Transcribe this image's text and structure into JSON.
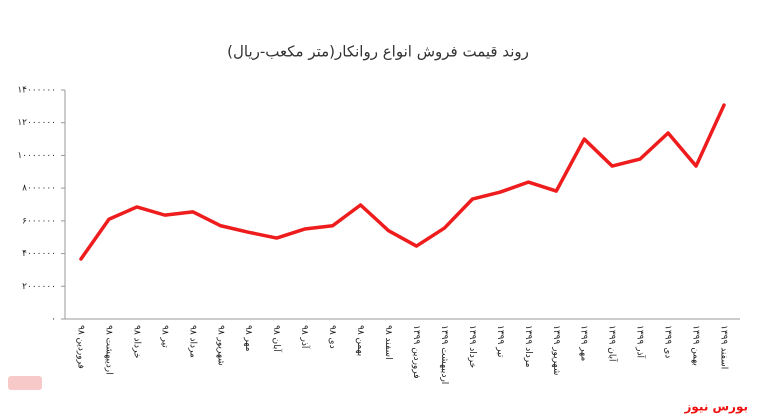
{
  "chart_data": {
    "type": "line",
    "title": "روند قیمت فروش انواع روانکار(متر مکعب-ریال)",
    "categories": [
      "فروردین ۹۸",
      "اردیبهشت ۹۸",
      "خرداد ۹۸",
      "تیر ۹۸",
      "مرداد ۹۸",
      "شهریور ۹۸",
      "مهر ۹۸",
      "آبان ۹۸",
      "آذر ۹۸",
      "دی ۹۸",
      "بهمن ۹۸",
      "اسفند ۹۸",
      "فروردین ۱۳۹۹",
      "اردیبهشت ۱۳۹۹",
      "خرداد ۱۳۹۹",
      "تیر ۱۳۹۹",
      "مرداد ۱۳۹۹",
      "شهریور ۱۳۹۹",
      "مهر ۱۳۹۹",
      "آبان ۱۳۹۹",
      "آذر ۱۳۹۹",
      "دی ۱۳۹۹",
      "بهمن ۱۳۹۹",
      "اسفند ۱۳۹۹"
    ],
    "values": [
      3670000,
      6100000,
      6850000,
      6350000,
      6550000,
      5700000,
      5300000,
      4950000,
      5500000,
      5700000,
      6970000,
      5400000,
      4460000,
      5560000,
      7330000,
      7760000,
      8370000,
      7820000,
      11000000,
      9350000,
      9780000,
      11370000,
      9350000,
      13080000
    ],
    "color": "#ee1c1c",
    "ylim": [
      0,
      14000000
    ],
    "yticks": [
      {
        "value": 0,
        "label": "۰"
      },
      {
        "value": 2000000,
        "label": "۲۰۰۰۰۰۰"
      },
      {
        "value": 4000000,
        "label": "۴۰۰۰۰۰۰"
      },
      {
        "value": 6000000,
        "label": "۶۰۰۰۰۰۰"
      },
      {
        "value": 8000000,
        "label": "۸۰۰۰۰۰۰"
      },
      {
        "value": 10000000,
        "label": "۱۰۰۰۰۰۰۰"
      },
      {
        "value": 12000000,
        "label": "۱۲۰۰۰۰۰۰"
      },
      {
        "value": 14000000,
        "label": "۱۴۰۰۰۰۰۰"
      }
    ],
    "grid": false,
    "source": "بورس نیوز"
  }
}
